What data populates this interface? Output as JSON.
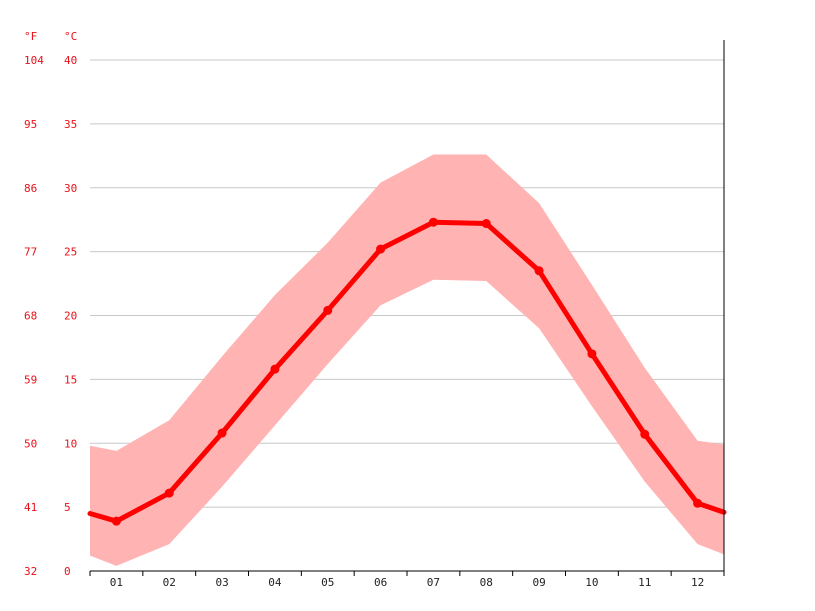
{
  "chart_data": {
    "type": "line",
    "units": {
      "fahrenheit": "°F",
      "celsius": "°C"
    },
    "categories": [
      "01",
      "02",
      "03",
      "04",
      "05",
      "06",
      "07",
      "08",
      "09",
      "10",
      "11",
      "12"
    ],
    "x": [
      1,
      2,
      3,
      4,
      5,
      6,
      7,
      8,
      9,
      10,
      11,
      12
    ],
    "series": [
      {
        "values": [
          3.9,
          6.1,
          10.8,
          15.8,
          20.4,
          25.2,
          27.3,
          27.2,
          23.5,
          17.0,
          10.7,
          5.3
        ]
      }
    ],
    "range": {
      "min": [
        0.4,
        2.1,
        6.6,
        11.4,
        16.2,
        20.8,
        22.8,
        22.7,
        19.0,
        12.9,
        7.0,
        2.1
      ],
      "max": [
        9.4,
        11.8,
        16.8,
        21.6,
        25.7,
        30.4,
        32.6,
        32.6,
        28.8,
        22.4,
        15.9,
        10.2
      ]
    },
    "edge_values": {
      "start": 4.5,
      "end": 4.6,
      "min_start": 1.2,
      "min_end": 1.3,
      "max_start": 9.8,
      "max_end": 9.9
    },
    "y_ticks_celsius": [
      "0",
      "5",
      "10",
      "15",
      "20",
      "25",
      "30",
      "35",
      "40"
    ],
    "y_ticks_fahrenheit": [
      "32",
      "41",
      "50",
      "59",
      "68",
      "77",
      "86",
      "95",
      "104"
    ],
    "ylim": [
      0,
      40
    ],
    "grid": true,
    "colors": {
      "line": "#ff0000",
      "band": "#ffb3b3",
      "grid": "#c8c8c8",
      "tick_text": "#e8101a",
      "axis": "#000000"
    }
  }
}
